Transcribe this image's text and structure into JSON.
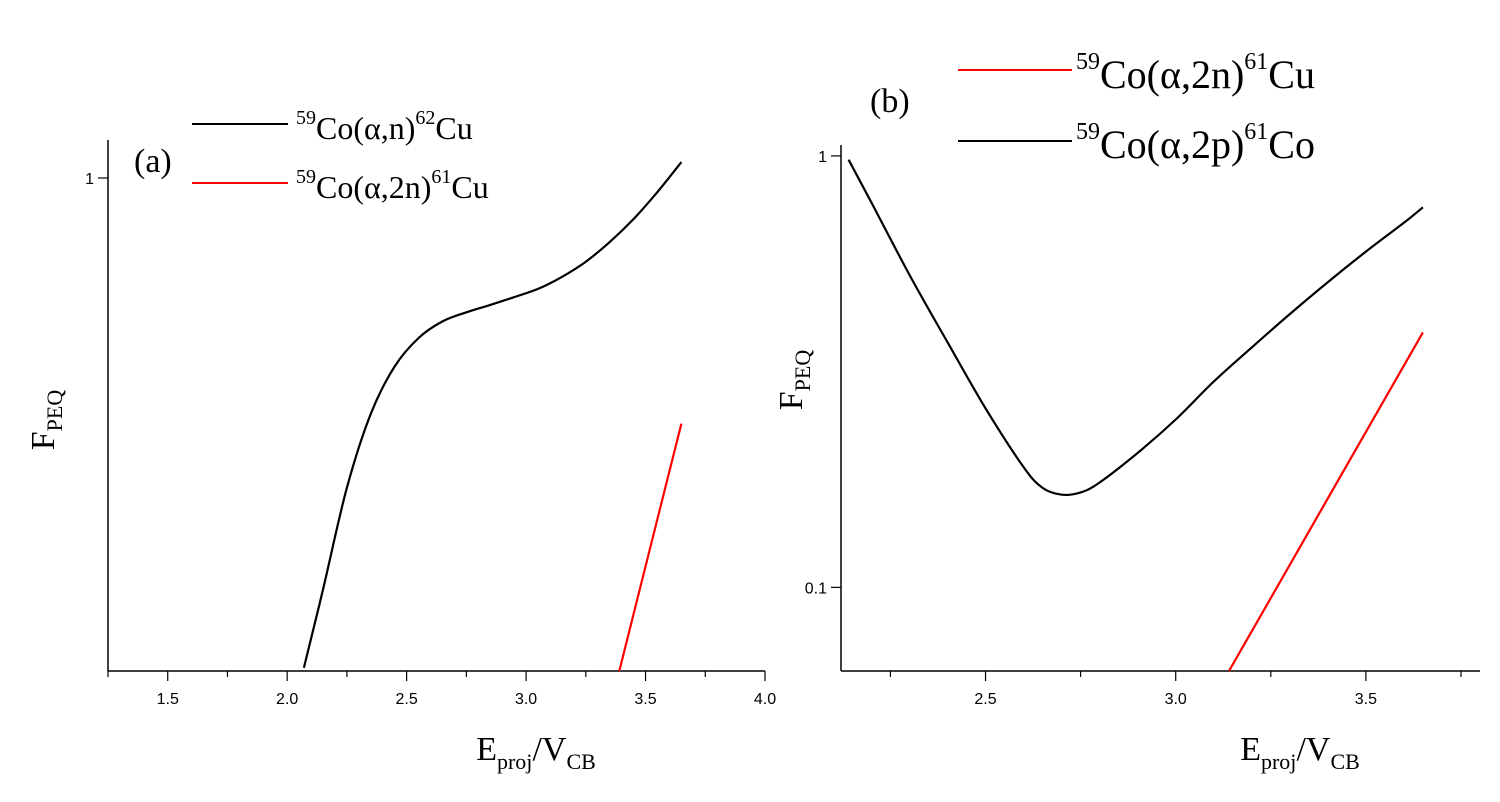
{
  "chart_data": [
    {
      "type": "line",
      "panel_label": "(a)",
      "ylabel": {
        "main": "F",
        "sub": "PEQ"
      },
      "xlabel": {
        "main": "E",
        "sub1": "proj",
        "sep": "/V",
        "sub2": "CB"
      },
      "x_ticks": [
        "1.5",
        "2.0",
        "2.5",
        "3.0",
        "3.5",
        "4.0"
      ],
      "y_ticks": [
        "1"
      ],
      "xlim": [
        1.25,
        4.0
      ],
      "ylim": [
        0.163,
        1.15
      ],
      "y_scale": "log",
      "legend_position": "top",
      "series": [
        {
          "legend": {
            "pre": "59",
            "main1": "Co(",
            "alpha": "α",
            "main2": ",n)",
            "post": "62",
            "main3": "Cu"
          },
          "color": "#000000",
          "x": [
            2.07,
            2.15,
            2.25,
            2.35,
            2.45,
            2.55,
            2.65,
            2.75,
            2.85,
            2.95,
            3.05,
            3.15,
            3.25,
            3.35,
            3.45,
            3.55,
            3.65
          ],
          "y": [
            0.165,
            0.22,
            0.32,
            0.42,
            0.5,
            0.555,
            0.59,
            0.61,
            0.627,
            0.645,
            0.665,
            0.695,
            0.735,
            0.79,
            0.86,
            0.95,
            1.06
          ]
        },
        {
          "legend": {
            "pre": "59",
            "main1": "Co(",
            "alpha": "α",
            "main2": ",2n)",
            "post": "61",
            "main3": "Cu"
          },
          "color": "#ff0000",
          "x": [
            3.39,
            3.65
          ],
          "y": [
            0.163,
            0.405
          ]
        }
      ]
    },
    {
      "type": "line",
      "panel_label": "(b)",
      "ylabel": {
        "main": "F",
        "sub": "PEQ"
      },
      "xlabel": {
        "main": "E",
        "sub1": "proj",
        "sep": "/V",
        "sub2": "CB"
      },
      "x_ticks": [
        "2.5",
        "3.0",
        "3.5"
      ],
      "y_ticks": [
        "1",
        "0.1"
      ],
      "xlim": [
        2.12,
        3.8
      ],
      "ylim": [
        0.064,
        1.06
      ],
      "y_scale": "log",
      "legend_position": "top",
      "series": [
        {
          "legend": {
            "pre": "59",
            "main1": "Co(",
            "alpha": "α",
            "main2": ",2n)",
            "post": "61",
            "main3": "Cu"
          },
          "color": "#ff0000",
          "x": [
            3.14,
            3.65
          ],
          "y": [
            0.064,
            0.39
          ]
        },
        {
          "legend": {
            "pre": "59",
            "main1": "Co(",
            "alpha": "α",
            "main2": ",2p)",
            "post": "61",
            "main3": "Co"
          },
          "color": "#000000",
          "x": [
            2.14,
            2.2,
            2.3,
            2.4,
            2.5,
            2.6,
            2.65,
            2.7,
            2.75,
            2.8,
            2.9,
            3.0,
            3.1,
            3.2,
            3.3,
            3.4,
            3.5,
            3.6,
            3.65
          ],
          "y": [
            0.98,
            0.78,
            0.53,
            0.37,
            0.26,
            0.19,
            0.17,
            0.164,
            0.166,
            0.175,
            0.205,
            0.245,
            0.3,
            0.36,
            0.43,
            0.51,
            0.6,
            0.7,
            0.76
          ]
        }
      ]
    }
  ]
}
